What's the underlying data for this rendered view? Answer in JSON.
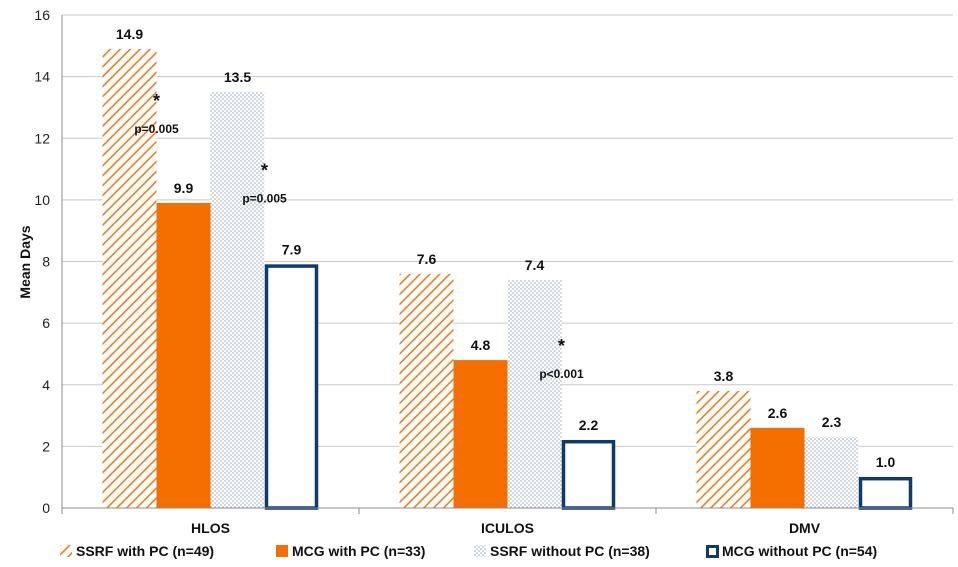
{
  "chart_data": {
    "type": "bar",
    "categories": [
      "HLOS",
      "ICULOS",
      "DMV"
    ],
    "series": [
      {
        "name": "SSRF with PC (n=49)",
        "values": [
          14.9,
          7.6,
          3.8
        ],
        "value_labels": [
          "14.9",
          "7.6",
          "3.8"
        ],
        "style": "hatch",
        "color": "#f07d1a"
      },
      {
        "name": "MCG with PC (n=33)",
        "values": [
          9.9,
          4.8,
          2.6
        ],
        "value_labels": [
          "9.9",
          "4.8",
          "2.6"
        ],
        "style": "solid",
        "color": "#f46f00"
      },
      {
        "name": "SSRF without PC (n=38)",
        "values": [
          13.5,
          7.4,
          2.3
        ],
        "value_labels": [
          "13.5",
          "7.4",
          "2.3"
        ],
        "style": "dots",
        "color": "#9aa8bf"
      },
      {
        "name": "MCG without PC (n=54)",
        "values": [
          7.9,
          2.2,
          1.0
        ],
        "value_labels": [
          "7.9",
          "2.2",
          "1.0"
        ],
        "style": "outline",
        "color": "#0f3a6b"
      }
    ],
    "ylabel": "Mean Days",
    "ylim": [
      0,
      16
    ],
    "yticks": [
      "0",
      "2",
      "4",
      "6",
      "8",
      "10",
      "12",
      "14",
      "16"
    ],
    "grid": true,
    "legend_position": "bottom",
    "annotations": [
      {
        "category": "HLOS",
        "between_series": [
          0,
          1
        ],
        "star": "*",
        "text": "p=0.005"
      },
      {
        "category": "HLOS",
        "between_series": [
          2,
          3
        ],
        "star": "*",
        "text": "p=0.005"
      },
      {
        "category": "ICULOS",
        "between_series": [
          2,
          3
        ],
        "star": "*",
        "text": "p<0.001"
      }
    ]
  }
}
